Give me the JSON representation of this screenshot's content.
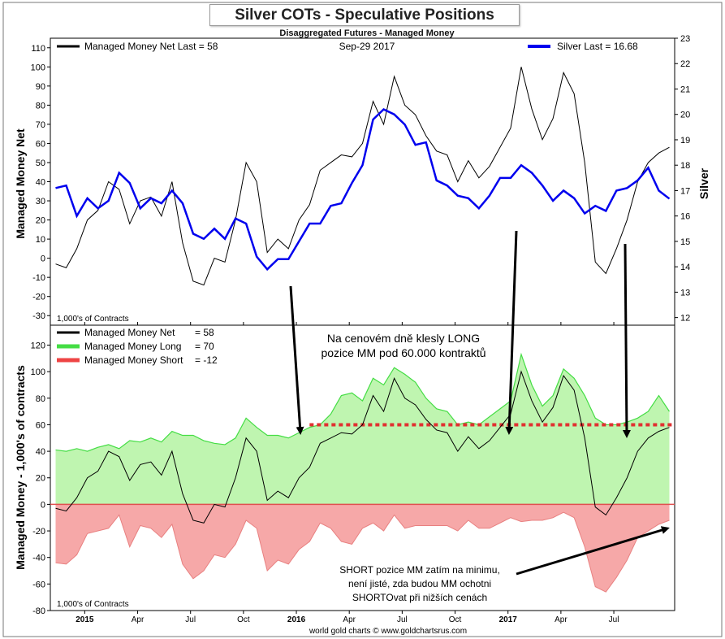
{
  "header": {
    "title": "Silver COTs - Speculative Positions",
    "subtitle": "Disaggregated Futures - Managed Money",
    "date": "Sep-29  2017",
    "credit": "world gold charts © www.goldchartsrus.com"
  },
  "top_panel": {
    "legend_net": "Managed Money Net   Last = 58",
    "legend_silver": "Silver Last = 16.68",
    "ylabel_left": "Managed Money Net",
    "ylabel_right": "Silver",
    "units": "1,000's of Contracts"
  },
  "bottom_panel": {
    "legend_net_label": "Managed Money Net",
    "legend_net_val": "= 58",
    "legend_long_label": "Managed Money Long",
    "legend_long_val": "= 70",
    "legend_short_label": "Managed Money Short",
    "legend_short_val": "= -12",
    "ylabel": "Managed Money - 1,000's of contracts",
    "units": "1,000's of Contracts"
  },
  "annotations": {
    "top_line1": "Na cenovém dně klesly LONG",
    "top_line2": "pozice MM pod 60.000 kontraktů",
    "bottom_line1": "SHORT pozice MM zatím na minimu,",
    "bottom_line2": "není jisté, zda budou MM ochotni",
    "bottom_line3": "SHORTOvat při nižších cenách"
  },
  "colors": {
    "net": "#000000",
    "silver": "#0000ee",
    "long_line": "#44dd44",
    "long_fill": "#bff5b0",
    "short_line": "#e88080",
    "short_fill": "#f6a8a8",
    "threshold": "#e03030"
  },
  "chart_data": [
    {
      "type": "line",
      "panel": "top",
      "x_ticks": [
        "2015",
        "Apr",
        "Jul",
        "Oct",
        "2016",
        "Apr",
        "Jul",
        "Oct",
        "2017",
        "Apr",
        "Jul"
      ],
      "y_left_ticks": [
        -30,
        -20,
        -10,
        0,
        10,
        20,
        30,
        40,
        50,
        60,
        70,
        80,
        90,
        100,
        110
      ],
      "y_right_ticks": [
        12,
        13,
        14,
        15,
        16,
        17,
        18,
        19,
        20,
        21,
        22,
        23
      ],
      "ylim_left": [
        -35,
        115
      ],
      "ylim_right": [
        11.7,
        23
      ],
      "series": [
        {
          "name": "Managed Money Net",
          "axis": "left",
          "x": [
            0,
            0.2,
            0.4,
            0.6,
            0.8,
            1.0,
            1.2,
            1.4,
            1.6,
            1.8,
            2.0,
            2.2,
            2.4,
            2.6,
            2.8,
            3.0,
            3.2,
            3.4,
            3.6,
            3.8,
            4.0,
            4.2,
            4.4,
            4.6,
            4.8,
            5.0,
            5.2,
            5.4,
            5.6,
            5.8,
            6.0,
            6.2,
            6.4,
            6.6,
            6.8,
            7.0,
            7.2,
            7.4,
            7.6,
            7.8,
            8.0,
            8.2,
            8.4,
            8.6,
            8.8,
            9.0,
            9.2,
            9.4,
            9.6,
            9.8,
            10.0,
            10.2,
            10.4,
            10.6,
            10.8,
            11.0,
            11.2,
            11.4,
            11.6
          ],
          "values": [
            -3,
            -5,
            5,
            20,
            25,
            40,
            36,
            18,
            30,
            32,
            22,
            40,
            8,
            -12,
            -14,
            0,
            -2,
            20,
            50,
            40,
            3,
            10,
            5,
            20,
            28,
            46,
            50,
            54,
            53,
            60,
            82,
            70,
            95,
            80,
            75,
            64,
            56,
            54,
            40,
            51,
            42,
            48,
            58,
            68,
            100,
            78,
            62,
            73,
            97,
            86,
            50,
            -2,
            -8,
            5,
            20,
            40,
            50,
            55,
            58
          ],
          "unit": "1,000's of contracts"
        },
        {
          "name": "Silver",
          "axis": "right",
          "x": [
            0,
            0.2,
            0.4,
            0.6,
            0.8,
            1.0,
            1.2,
            1.4,
            1.6,
            1.8,
            2.0,
            2.2,
            2.4,
            2.6,
            2.8,
            3.0,
            3.2,
            3.4,
            3.6,
            3.8,
            4.0,
            4.2,
            4.4,
            4.6,
            4.8,
            5.0,
            5.2,
            5.4,
            5.6,
            5.8,
            6.0,
            6.2,
            6.4,
            6.6,
            6.8,
            7.0,
            7.2,
            7.4,
            7.6,
            7.8,
            8.0,
            8.2,
            8.4,
            8.6,
            8.8,
            9.0,
            9.2,
            9.4,
            9.6,
            9.8,
            10.0,
            10.2,
            10.4,
            10.6,
            10.8,
            11.0,
            11.2,
            11.4,
            11.6
          ],
          "values": [
            17.1,
            17.2,
            16.0,
            16.7,
            16.3,
            16.6,
            17.7,
            17.3,
            16.3,
            16.7,
            16.5,
            17.0,
            16.5,
            15.3,
            15.1,
            15.5,
            15.1,
            15.9,
            15.7,
            14.4,
            13.9,
            14.3,
            14.3,
            15.0,
            15.7,
            15.7,
            16.4,
            16.5,
            17.3,
            18.0,
            19.8,
            20.2,
            20.0,
            19.6,
            18.8,
            18.9,
            17.4,
            17.2,
            16.8,
            16.7,
            16.3,
            16.8,
            17.5,
            17.5,
            18.0,
            17.7,
            17.2,
            16.6,
            17.0,
            16.7,
            16.1,
            16.4,
            16.2,
            17.0,
            17.1,
            17.4,
            17.9,
            17.0,
            16.68
          ],
          "unit": "USD"
        }
      ]
    },
    {
      "type": "area",
      "panel": "bottom",
      "x_ticks": [
        "2015",
        "Apr",
        "Jul",
        "Oct",
        "2016",
        "Apr",
        "Jul",
        "Oct",
        "2017",
        "Apr",
        "Jul"
      ],
      "y_ticks": [
        -80,
        -60,
        -40,
        -20,
        0,
        20,
        40,
        60,
        80,
        100,
        120
      ],
      "ylim": [
        -80,
        135
      ],
      "threshold_line": 60,
      "series": [
        {
          "name": "Managed Money Long",
          "x": [
            0,
            0.2,
            0.4,
            0.6,
            0.8,
            1.0,
            1.2,
            1.4,
            1.6,
            1.8,
            2.0,
            2.2,
            2.4,
            2.6,
            2.8,
            3.0,
            3.2,
            3.4,
            3.6,
            3.8,
            4.0,
            4.2,
            4.4,
            4.6,
            4.8,
            5.0,
            5.2,
            5.4,
            5.6,
            5.8,
            6.0,
            6.2,
            6.4,
            6.6,
            6.8,
            7.0,
            7.2,
            7.4,
            7.6,
            7.8,
            8.0,
            8.2,
            8.4,
            8.6,
            8.8,
            9.0,
            9.2,
            9.4,
            9.6,
            9.8,
            10.0,
            10.2,
            10.4,
            10.6,
            10.8,
            11.0,
            11.2,
            11.4,
            11.6
          ],
          "values": [
            41,
            40,
            42,
            40,
            43,
            45,
            42,
            48,
            47,
            50,
            47,
            55,
            52,
            52,
            48,
            46,
            45,
            50,
            65,
            58,
            52,
            52,
            50,
            54,
            58,
            60,
            68,
            82,
            84,
            78,
            95,
            90,
            103,
            98,
            92,
            80,
            72,
            70,
            60,
            62,
            60,
            66,
            72,
            78,
            113,
            90,
            74,
            82,
            102,
            95,
            82,
            65,
            60,
            60,
            62,
            65,
            70,
            82,
            70
          ],
          "unit": "1,000's of contracts"
        },
        {
          "name": "Managed Money Short",
          "x": [
            0,
            0.2,
            0.4,
            0.6,
            0.8,
            1.0,
            1.2,
            1.4,
            1.6,
            1.8,
            2.0,
            2.2,
            2.4,
            2.6,
            2.8,
            3.0,
            3.2,
            3.4,
            3.6,
            3.8,
            4.0,
            4.2,
            4.4,
            4.6,
            4.8,
            5.0,
            5.2,
            5.4,
            5.6,
            5.8,
            6.0,
            6.2,
            6.4,
            6.6,
            6.8,
            7.0,
            7.2,
            7.4,
            7.6,
            7.8,
            8.0,
            8.2,
            8.4,
            8.6,
            8.8,
            9.0,
            9.2,
            9.4,
            9.6,
            9.8,
            10.0,
            10.2,
            10.4,
            10.6,
            10.8,
            11.0,
            11.2,
            11.4,
            11.6
          ],
          "values": [
            -44,
            -45,
            -38,
            -22,
            -20,
            -18,
            -8,
            -32,
            -16,
            -18,
            -25,
            -15,
            -45,
            -56,
            -50,
            -38,
            -40,
            -30,
            -12,
            -18,
            -50,
            -42,
            -45,
            -34,
            -28,
            -14,
            -18,
            -28,
            -30,
            -18,
            -14,
            -20,
            -8,
            -18,
            -16,
            -16,
            -16,
            -16,
            -20,
            -12,
            -18,
            -18,
            -14,
            -10,
            -13,
            -12,
            -12,
            -10,
            -6,
            -10,
            -32,
            -62,
            -66,
            -55,
            -42,
            -25,
            -20,
            -15,
            -12
          ],
          "unit": "1,000's of contracts"
        },
        {
          "name": "Managed Money Net",
          "x": [
            0,
            0.2,
            0.4,
            0.6,
            0.8,
            1.0,
            1.2,
            1.4,
            1.6,
            1.8,
            2.0,
            2.2,
            2.4,
            2.6,
            2.8,
            3.0,
            3.2,
            3.4,
            3.6,
            3.8,
            4.0,
            4.2,
            4.4,
            4.6,
            4.8,
            5.0,
            5.2,
            5.4,
            5.6,
            5.8,
            6.0,
            6.2,
            6.4,
            6.6,
            6.8,
            7.0,
            7.2,
            7.4,
            7.6,
            7.8,
            8.0,
            8.2,
            8.4,
            8.6,
            8.8,
            9.0,
            9.2,
            9.4,
            9.6,
            9.8,
            10.0,
            10.2,
            10.4,
            10.6,
            10.8,
            11.0,
            11.2,
            11.4,
            11.6
          ],
          "values": [
            -3,
            -5,
            5,
            20,
            25,
            40,
            36,
            18,
            30,
            32,
            22,
            40,
            8,
            -12,
            -14,
            0,
            -2,
            20,
            50,
            40,
            3,
            10,
            5,
            20,
            28,
            46,
            50,
            54,
            53,
            60,
            82,
            70,
            95,
            80,
            75,
            64,
            56,
            54,
            40,
            51,
            42,
            48,
            58,
            68,
            100,
            78,
            62,
            73,
            97,
            86,
            50,
            -2,
            -8,
            5,
            20,
            40,
            50,
            55,
            58
          ],
          "unit": "1,000's of contracts"
        }
      ]
    }
  ]
}
